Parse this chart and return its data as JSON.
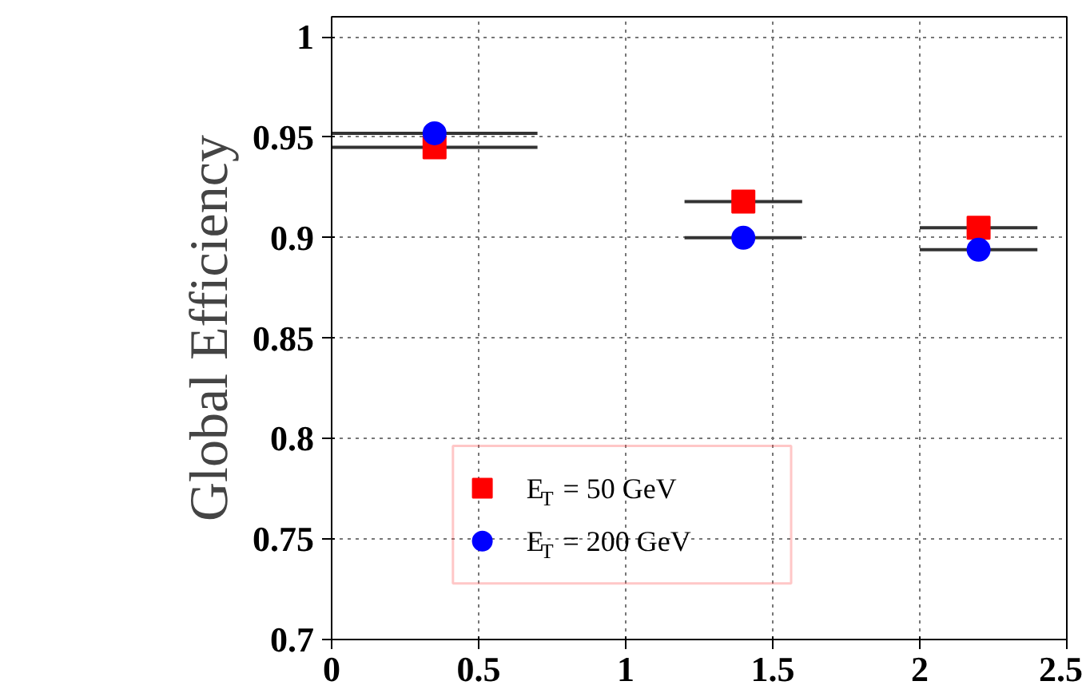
{
  "chart_data": {
    "type": "scatter",
    "ylabel": "Global Efficiency",
    "x": [
      0.35,
      1.4,
      2.2
    ],
    "series": [
      {
        "name": "E$_{T}$ = 50 GeV",
        "color": "#ff0000",
        "marker": "square",
        "values": [
          0.945,
          0.918,
          0.905
        ],
        "xerrors": [
          0.35,
          0.2,
          0.2
        ]
      },
      {
        "name": "E$_{T}$ = 200 GeV",
        "color": "#0000ff",
        "marker": "circle",
        "values": [
          0.952,
          0.9,
          0.894
        ],
        "xerrors": [
          0.35,
          0.2,
          0.2
        ]
      }
    ],
    "xlim": [
      0,
      2.5
    ],
    "ylim": [
      0.7,
      1.01
    ],
    "xticks": [
      0,
      0.5,
      1,
      1.5,
      2,
      2.5
    ],
    "yticks": [
      0.7,
      0.75,
      0.8,
      0.85,
      0.9,
      0.95,
      1
    ],
    "grid": true,
    "legend": "bottom"
  }
}
